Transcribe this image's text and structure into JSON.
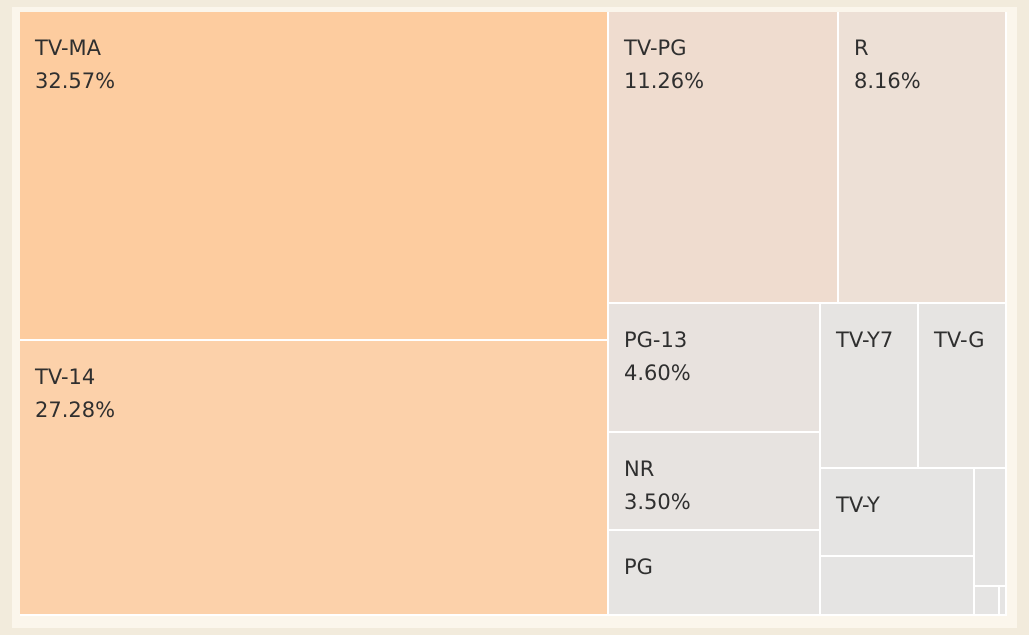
{
  "chart_data": {
    "type": "treemap",
    "items": [
      {
        "name": "TV-MA",
        "label": "TV-MA",
        "pct_text": "32.57%",
        "value": 32.57,
        "color": "#fdcc9f"
      },
      {
        "name": "TV-14",
        "label": "TV-14",
        "pct_text": "27.28%",
        "value": 27.28,
        "color": "#fcd1aa"
      },
      {
        "name": "TV-PG",
        "label": "TV-PG",
        "pct_text": "11.26%",
        "value": 11.26,
        "color": "#efdccf"
      },
      {
        "name": "R",
        "label": "R",
        "pct_text": "8.16%",
        "value": 8.16,
        "color": "#ede0d6"
      },
      {
        "name": "PG-13",
        "label": "PG-13",
        "pct_text": "4.60%",
        "value": 4.6,
        "color": "#e8e2de"
      },
      {
        "name": "NR",
        "label": "NR",
        "pct_text": "3.50%",
        "value": 3.5,
        "color": "#e7e3e0"
      },
      {
        "name": "PG",
        "label": "PG",
        "pct_text": "",
        "value": 3.3,
        "color": "#e6e4e2"
      },
      {
        "name": "TV-Y7",
        "label": "TV-Y7",
        "pct_text": "",
        "value": 2.4,
        "color": "#e6e4e2"
      },
      {
        "name": "TV-G",
        "label": "TV-G",
        "pct_text": "",
        "value": 2.1,
        "color": "#e6e4e2"
      },
      {
        "name": "TV-Y",
        "label": "TV-Y",
        "pct_text": "",
        "value": 1.6,
        "color": "#e5e4e3"
      },
      {
        "name": "other-1",
        "label": "",
        "pct_text": "",
        "value": 0.7,
        "color": "#e5e4e3"
      },
      {
        "name": "other-2",
        "label": "",
        "pct_text": "",
        "value": 0.6,
        "color": "#e5e4e3"
      },
      {
        "name": "other-3",
        "label": "",
        "pct_text": "",
        "value": 0.1,
        "color": "#e5e4e3"
      },
      {
        "name": "other-4",
        "label": "",
        "pct_text": "",
        "value": 0.05,
        "color": "#e5e4e3"
      }
    ]
  }
}
